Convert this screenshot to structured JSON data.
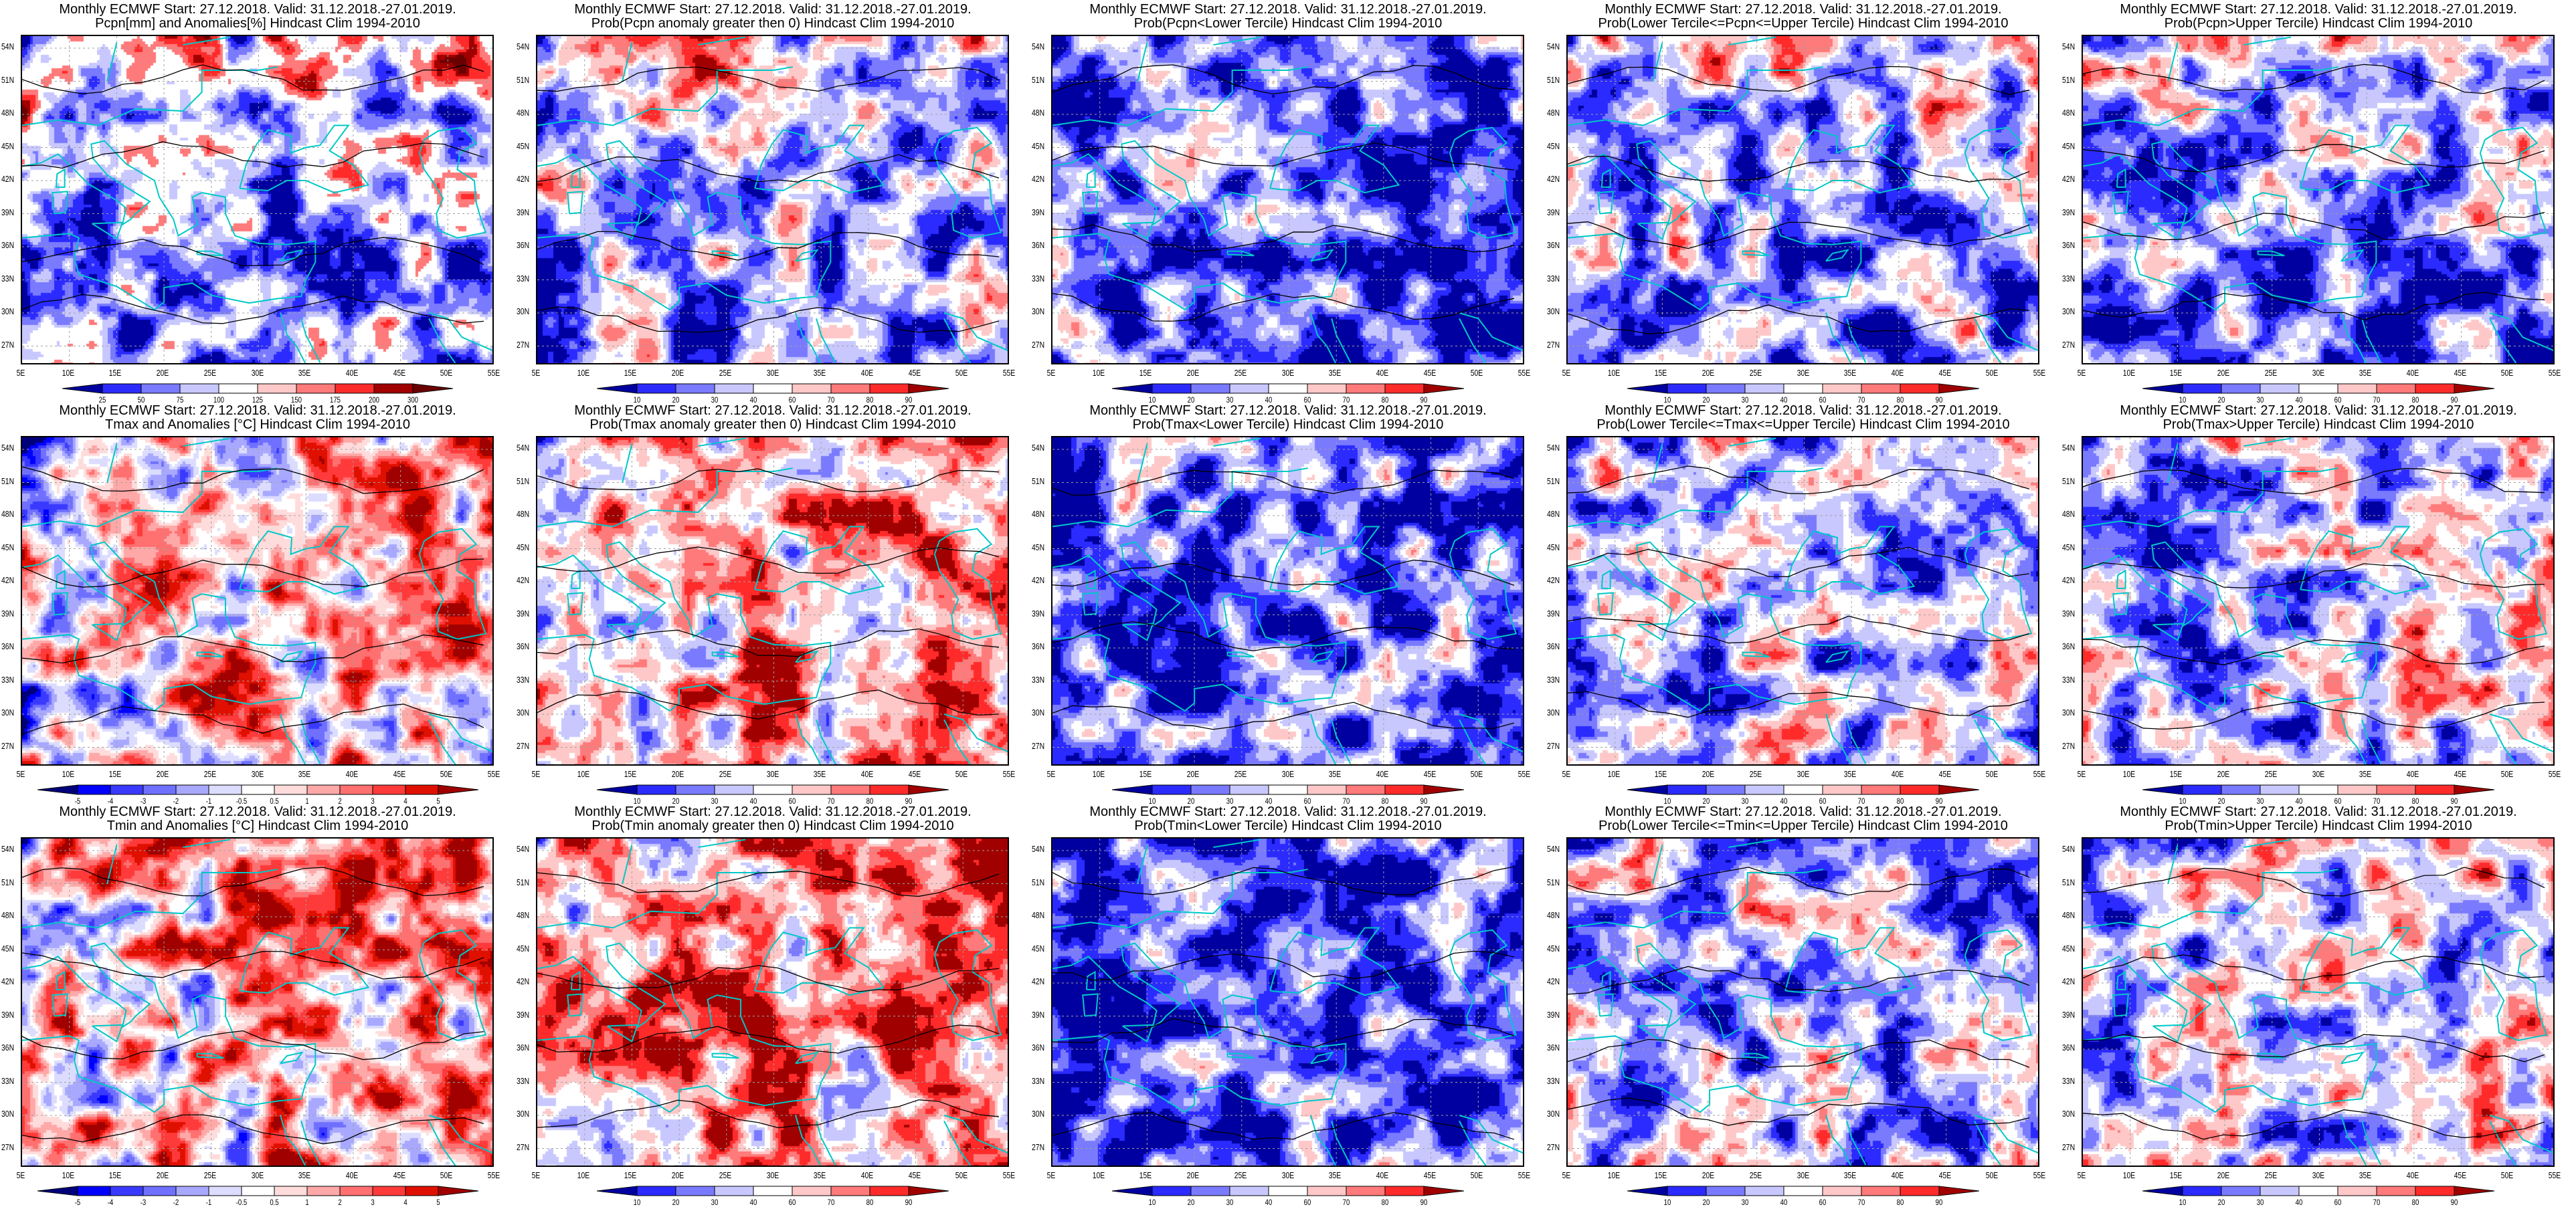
{
  "common_title": "Monthly ECMWF Start: 27.12.2018. Valid: 31.12.2018.-27.01.2019.",
  "x_ticks": [
    "5E",
    "10E",
    "15E",
    "20E",
    "25E",
    "30E",
    "35E",
    "40E",
    "45E",
    "50E",
    "55E"
  ],
  "y_ticks": [
    "54N",
    "51N",
    "48N",
    "45N",
    "42N",
    "39N",
    "36N",
    "33N",
    "30N",
    "27N"
  ],
  "colorbars": {
    "pcpn_anom": {
      "labels": [
        "25",
        "50",
        "75",
        "100",
        "125",
        "150",
        "175",
        "200",
        "300"
      ],
      "colors": [
        "#2b2bff",
        "#7a7aff",
        "#c8c8ff",
        "#ffffff",
        "#ffc8c8",
        "#ff7a7a",
        "#ff2b2b",
        "#a00000"
      ],
      "low": "#0000a0",
      "high": "#6b0000"
    },
    "prob": {
      "labels": [
        "10",
        "20",
        "30",
        "40",
        "60",
        "70",
        "80",
        "90"
      ],
      "colors": [
        "#2b2bff",
        "#7a7aff",
        "#c8c8ff",
        "#ffffff",
        "#ffc8c8",
        "#ff7a7a",
        "#ff2b2b"
      ],
      "low": "#0000a0",
      "high": "#a00000"
    },
    "temp_anom": {
      "labels": [
        "-5",
        "-4",
        "-3",
        "-2",
        "-1",
        "-0.5",
        "0.5",
        "1",
        "2",
        "3",
        "4",
        "5"
      ],
      "colors": [
        "#0000ff",
        "#3a3aff",
        "#7070ff",
        "#a8a8ff",
        "#dcdcff",
        "#ffffff",
        "#ffdcdc",
        "#ffa8a8",
        "#ff7070",
        "#ff3a3a",
        "#e01000"
      ],
      "low": "#00007a",
      "high": "#a00000"
    }
  },
  "colors": {
    "coastline": "#00c8c8",
    "grid": "#a0a0a0"
  },
  "chart_data": {
    "type": "heatmap",
    "xlim": [
      "5E",
      "55E"
    ],
    "ylim": [
      "25N",
      "55N"
    ],
    "grid": true,
    "panels": [
      {
        "title": "Pcpn[mm] and Anomalies[%] Hindcast Clim 1994-2010",
        "colorbar": "pcpn_anom"
      },
      {
        "title": "Prob(Pcpn anomaly greater then 0) Hindcast Clim 1994-2010",
        "colorbar": "prob"
      },
      {
        "title": "Prob(Pcpn<Lower Tercile) Hindcast Clim 1994-2010",
        "colorbar": "prob"
      },
      {
        "title": "Prob(Lower Tercile<=Pcpn<=Upper Tercile) Hindcast Clim 1994-2010",
        "colorbar": "prob"
      },
      {
        "title": "Prob(Pcpn>Upper Tercile) Hindcast Clim 1994-2010",
        "colorbar": "prob"
      },
      {
        "title": "Tmax and Anomalies [°C] Hindcast Clim 1994-2010",
        "colorbar": "temp_anom"
      },
      {
        "title": "Prob(Tmax anomaly greater then 0) Hindcast Clim 1994-2010",
        "colorbar": "prob"
      },
      {
        "title": "Prob(Tmax<Lower Tercile) Hindcast Clim 1994-2010",
        "colorbar": "prob"
      },
      {
        "title": "Prob(Lower Tercile<=Tmax<=Upper Tercile) Hindcast Clim 1994-2010",
        "colorbar": "prob"
      },
      {
        "title": "Prob(Tmax>Upper Tercile) Hindcast Clim 1994-2010",
        "colorbar": "prob"
      },
      {
        "title": "Tmin and Anomalies [°C] Hindcast Clim 1994-2010",
        "colorbar": "temp_anom"
      },
      {
        "title": "Prob(Tmin anomaly greater then 0) Hindcast Clim 1994-2010",
        "colorbar": "prob"
      },
      {
        "title": "Prob(Tmin<Lower Tercile) Hindcast Clim 1994-2010",
        "colorbar": "prob"
      },
      {
        "title": "Prob(Lower Tercile<=Tmin<=Upper Tercile) Hindcast Clim 1994-2010",
        "colorbar": "prob"
      },
      {
        "title": "Prob(Tmin>Upper Tercile) Hindcast Clim 1994-2010",
        "colorbar": "prob"
      }
    ]
  }
}
